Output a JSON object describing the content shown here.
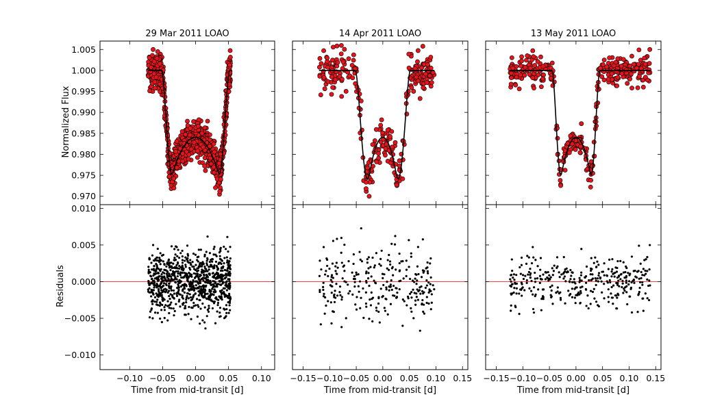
{
  "chart_data": [
    {
      "type": "scatter",
      "panel": "29 Mar 2011 LOAO",
      "title": "29 Mar 2011 LOAO",
      "xlabel": "Time from mid-transit [d]",
      "ylabel_top": "Normalized Flux",
      "ylabel_bottom": "Residuals",
      "xlim": [
        -0.145,
        0.12
      ],
      "x_ticks": [
        -0.1,
        -0.05,
        0.0,
        0.05,
        0.1
      ],
      "x_tick_labels": [
        "−0.10",
        "−0.05",
        "0.00",
        "0.05",
        "0.10"
      ],
      "top": {
        "ylim": [
          0.968,
          1.007
        ],
        "y_ticks": [
          0.97,
          0.975,
          0.98,
          0.985,
          0.99,
          0.995,
          1.0,
          1.005
        ],
        "y_tick_labels": [
          "0.970",
          "0.975",
          "0.980",
          "0.985",
          "0.990",
          "0.995",
          "1.000",
          "1.005"
        ],
        "data_range": [
          -0.072,
          0.053
        ],
        "n_points": 900,
        "model": {
          "t1": -0.052,
          "t2": -0.035,
          "t3": 0.035,
          "t4": 0.052,
          "depth": 0.0245,
          "curvature": 0.35
        },
        "scatter": 0.0022,
        "marker": {
          "fill": "#e8141c",
          "edge": "#000000"
        },
        "model_color": "#000000"
      },
      "bottom": {
        "ylim": [
          -0.012,
          0.0105
        ],
        "y_ticks": [
          -0.01,
          -0.005,
          0.0,
          0.005,
          0.01
        ],
        "y_tick_labels": [
          "−0.010",
          "−0.005",
          "0.000",
          "0.005",
          "0.010"
        ],
        "zero_line_color": "#ff0000",
        "point_color": "#000000"
      },
      "x_data_label": "Time from mid-transit [d]"
    },
    {
      "type": "scatter",
      "panel": "14 Apr 2011 LOAO",
      "title": "14 Apr 2011 LOAO",
      "xlabel": "Time from mid-transit [d]",
      "xlim": [
        -0.17,
        0.16
      ],
      "x_ticks": [
        -0.15,
        -0.1,
        -0.05,
        0.0,
        0.05,
        0.1,
        0.15
      ],
      "x_tick_labels": [
        "−0.15",
        "−0.10",
        "−0.05",
        "0.00",
        "0.05",
        "0.10",
        "0.15"
      ],
      "top": {
        "ylim": [
          0.968,
          1.007
        ],
        "data_range": [
          -0.12,
          0.097
        ],
        "n_points": 280,
        "model": {
          "t1": -0.057,
          "t2": -0.025,
          "t3": 0.025,
          "t4": 0.052,
          "depth": 0.0245,
          "curvature": 0.35
        },
        "scatter": 0.0026,
        "marker": {
          "fill": "#e8141c",
          "edge": "#000000"
        },
        "model_color": "#000000"
      },
      "bottom": {
        "ylim": [
          -0.012,
          0.0105
        ],
        "zero_line_color": "#ff0000",
        "point_color": "#000000"
      }
    },
    {
      "type": "scatter",
      "panel": "13 May 2011 LOAO",
      "title": "13 May 2011 LOAO",
      "xlabel": "Time from mid-transit [d]",
      "xlim": [
        -0.17,
        0.16
      ],
      "x_ticks": [
        -0.15,
        -0.1,
        -0.05,
        0.0,
        0.05,
        0.1,
        0.15
      ],
      "x_tick_labels": [
        "−0.15",
        "−0.10",
        "−0.05",
        "0.00",
        "0.05",
        "0.10",
        "0.15"
      ],
      "top": {
        "ylim": [
          0.968,
          1.007
        ],
        "data_range": [
          -0.125,
          0.14
        ],
        "n_points": 360,
        "model": {
          "t1": -0.045,
          "t2": -0.027,
          "t3": 0.027,
          "t4": 0.045,
          "depth": 0.0245,
          "curvature": 0.35
        },
        "scatter": 0.0018,
        "marker": {
          "fill": "#e8141c",
          "edge": "#000000"
        },
        "model_color": "#000000"
      },
      "bottom": {
        "ylim": [
          -0.012,
          0.0105
        ],
        "zero_line_color": "#ff0000",
        "point_color": "#000000"
      }
    }
  ]
}
